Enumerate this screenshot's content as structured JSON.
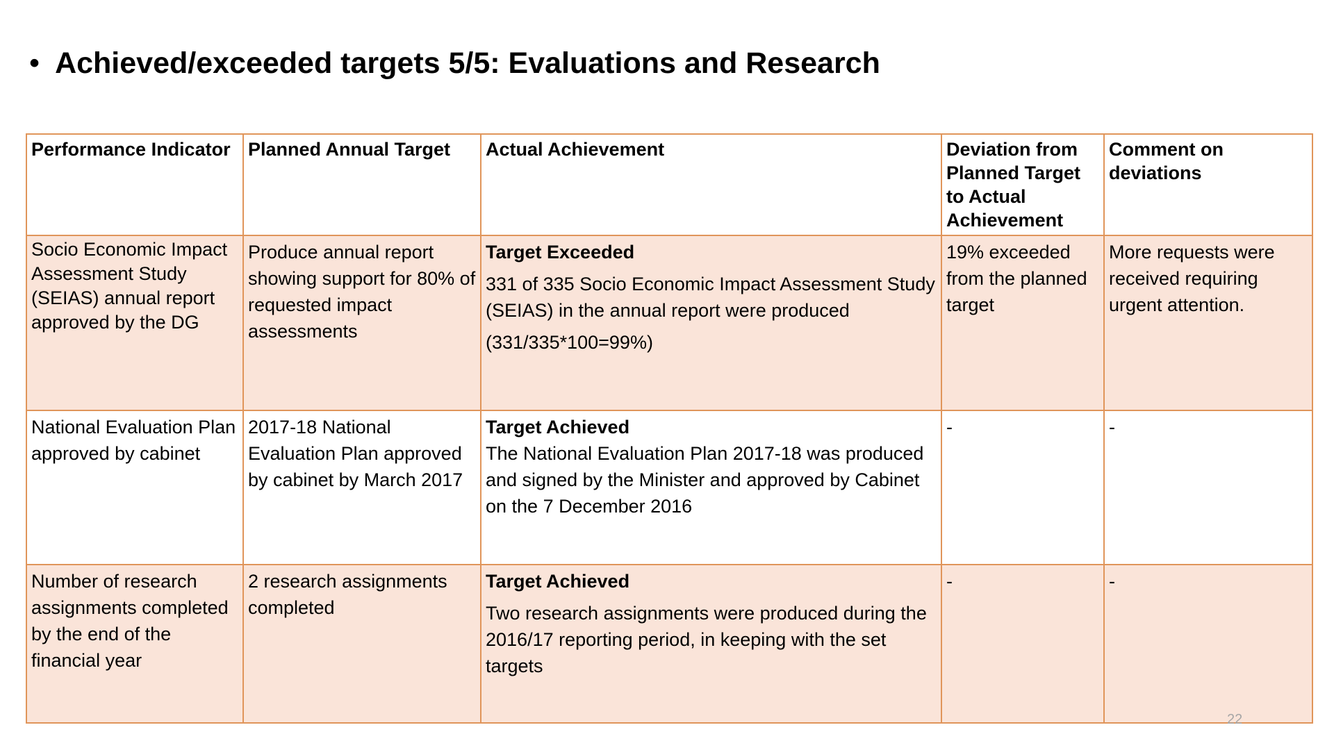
{
  "slide": {
    "bullet": "•",
    "title": "Achieved/exceeded targets 5/5: Evaluations and Research",
    "page_number": "22",
    "border_color": "#e0955a",
    "shade_color": "#fae4d9"
  },
  "table": {
    "headers": [
      "Performance Indicator",
      "Planned Annual Target",
      "Actual Achievement",
      "Deviation from Planned Target to Actual Achievement",
      "Comment on deviations"
    ],
    "rows": [
      {
        "indicator": "Socio Economic Impact Assessment Study (SEIAS)  annual report approved by the DG",
        "target": "Produce annual report showing  support for 80% of requested  impact assessments",
        "status": "Target Exceeded",
        "achievement": " 331 of 335 Socio Economic Impact Assessment Study (SEIAS) in the annual report were produced",
        "calculation": "(331/335*100=99%)",
        "deviation": "19% exceeded from the planned target",
        "comment": "More requests were received requiring urgent attention."
      },
      {
        "indicator": "National Evaluation Plan approved by cabinet",
        "target": "2017-18 National Evaluation Plan approved by cabinet by March 2017",
        "status": "Target Achieved",
        "achievement": "The National Evaluation Plan 2017-18 was produced and signed by the Minister  and approved by Cabinet on the 7 December 2016",
        "deviation": "-",
        "comment": "-"
      },
      {
        "indicator": "Number  of research assignments completed by the end of the financial year",
        "target": "2 research assignments completed",
        "status": "Target Achieved",
        "achievement": "Two research assignments were produced during the 2016/17 reporting period, in keeping with the set targets",
        "deviation": "-",
        "comment": "-"
      }
    ]
  }
}
